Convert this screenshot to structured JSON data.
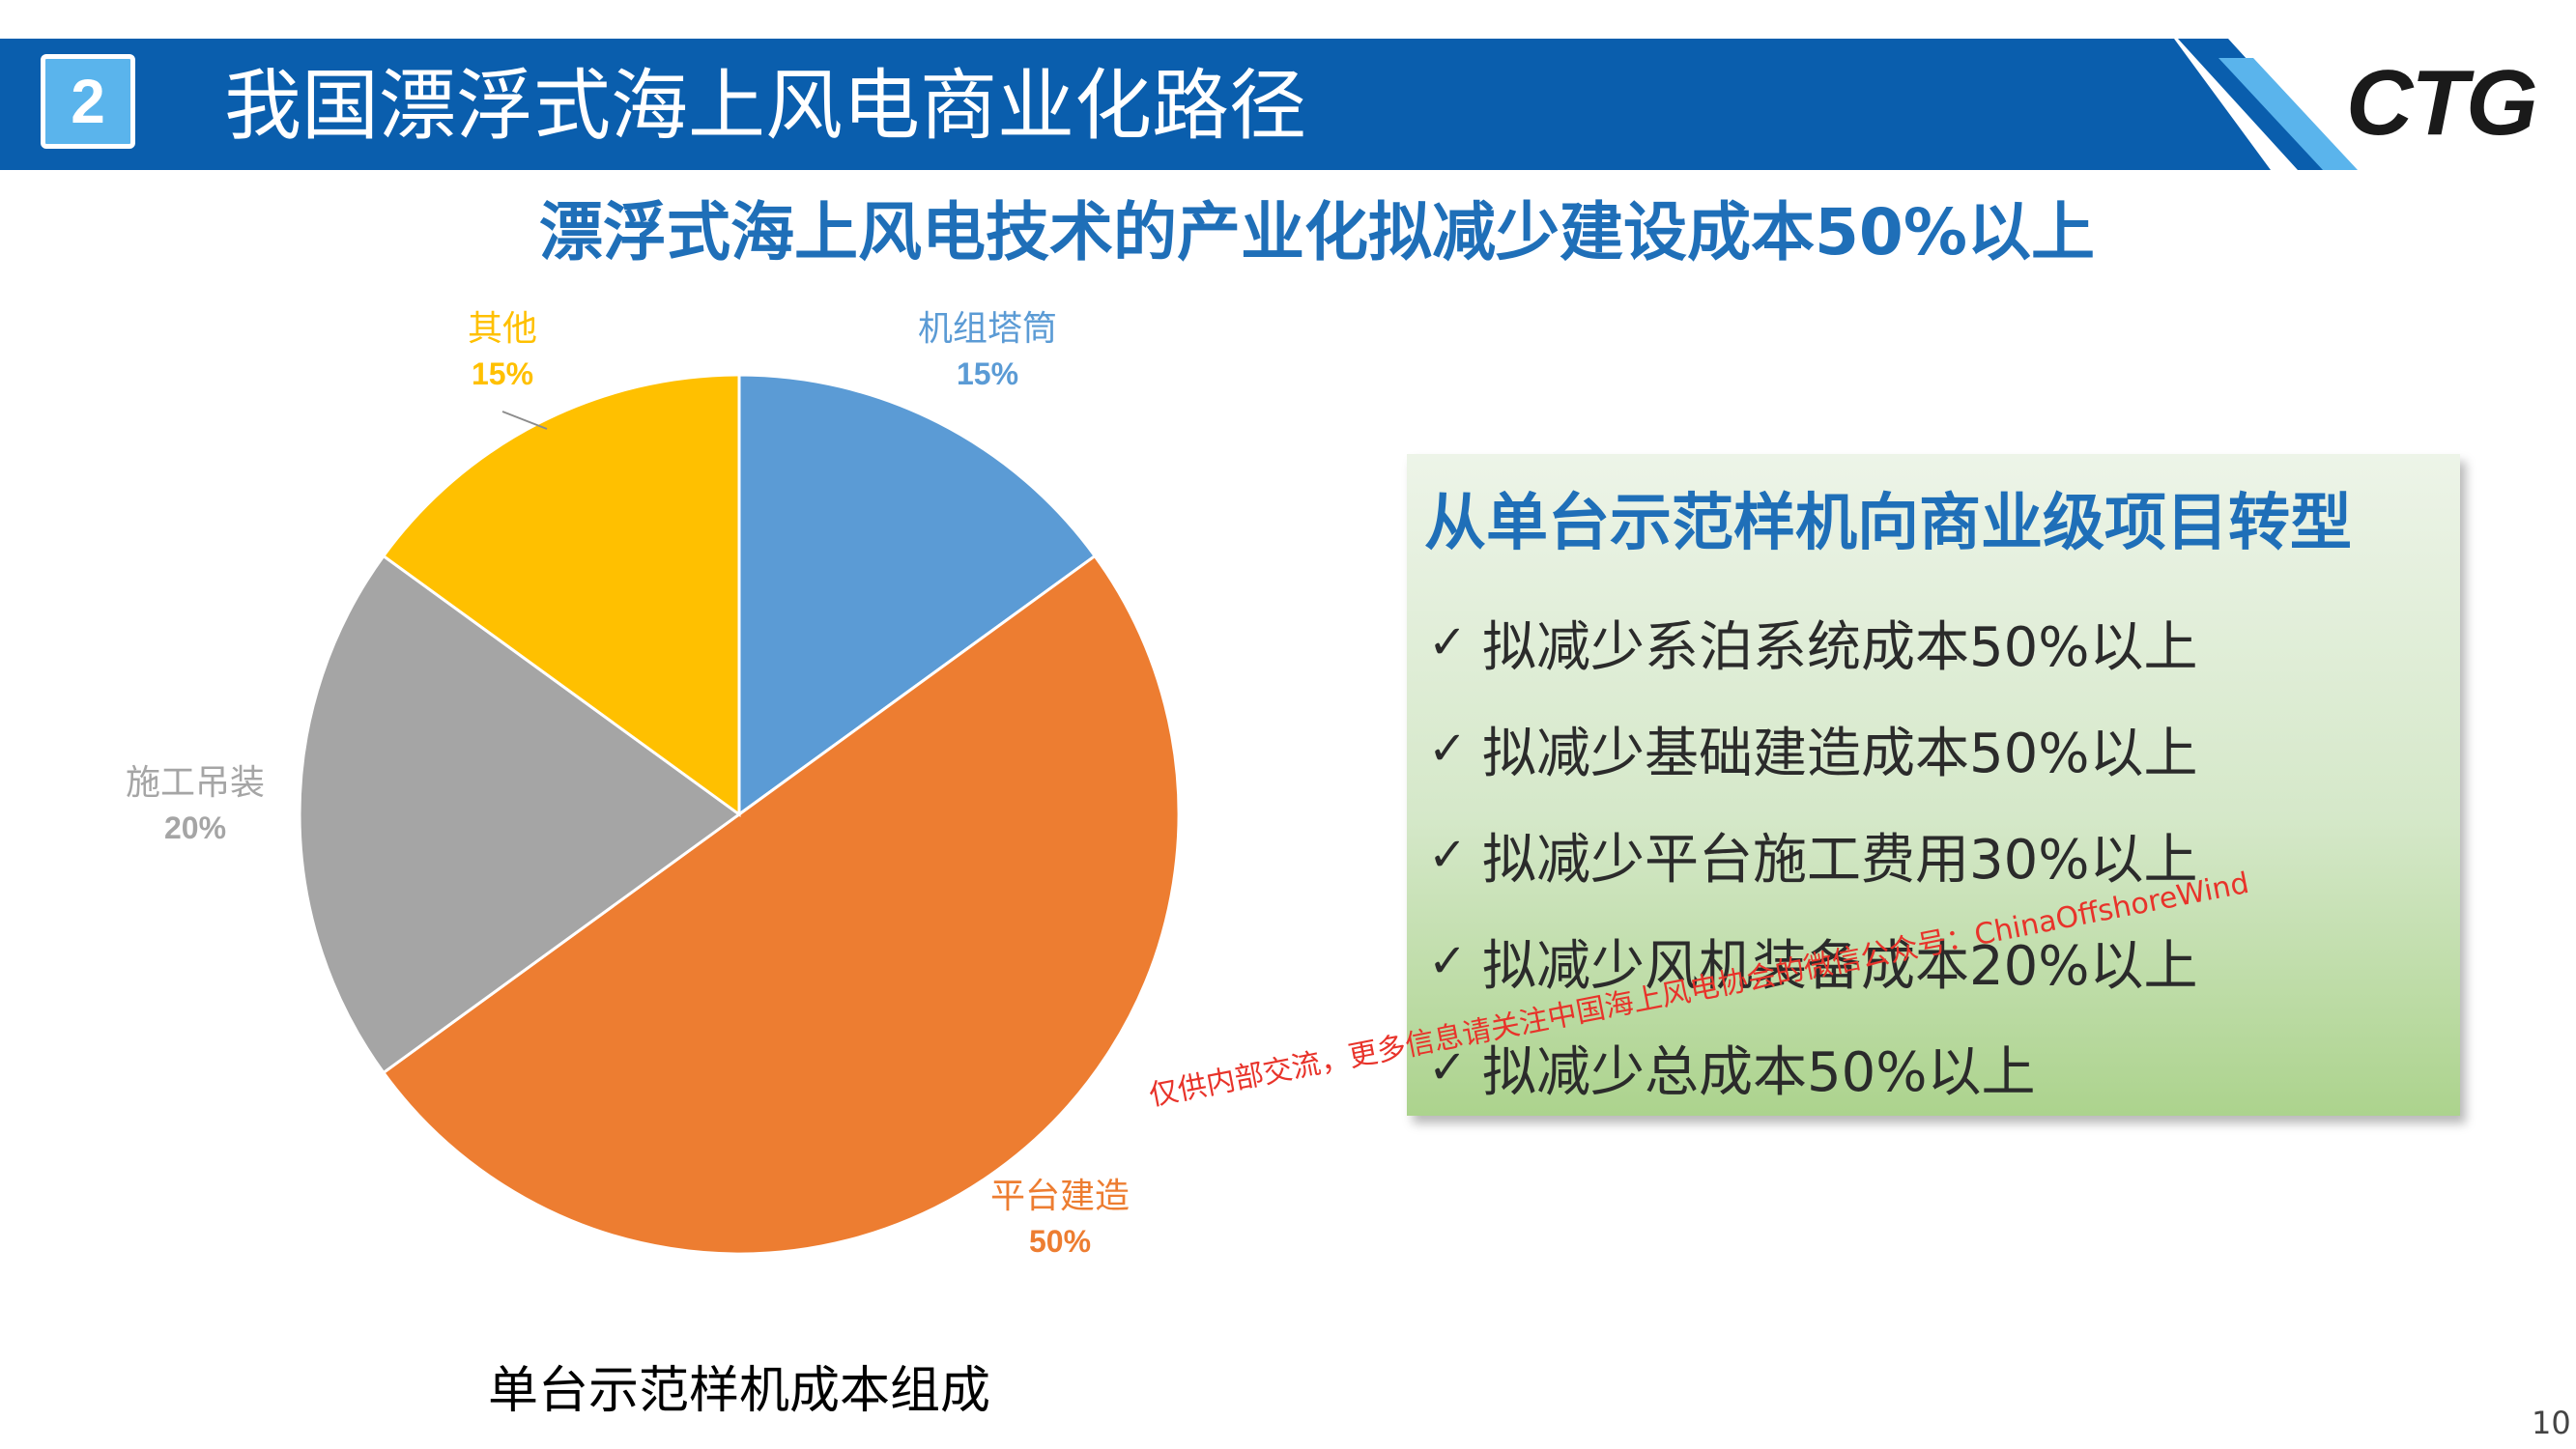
{
  "header": {
    "section_number": "2",
    "title": "我国漂浮式海上风电商业化路径",
    "logo_text": "CTG",
    "colors": {
      "bar": "#0a5ead",
      "badge": "#5ab4ec",
      "accent_stripe": "#5ab4ec"
    }
  },
  "subtitle": "漂浮式海上风电技术的产业化拟减少建设成本50%以上",
  "chart_data": {
    "type": "pie",
    "caption": "单台示范样机成本组成",
    "slices": [
      {
        "name": "机组塔筒",
        "value": 15,
        "label": "15%",
        "color": "#5b9bd5"
      },
      {
        "name": "平台建造",
        "value": 50,
        "label": "50%",
        "color": "#ed7d31"
      },
      {
        "name": "施工吊装",
        "value": 20,
        "label": "20%",
        "color": "#a5a5a5"
      },
      {
        "name": "其他",
        "value": 15,
        "label": "15%",
        "color": "#ffc000"
      }
    ],
    "start_angle_deg": 0,
    "direction": "clockwise"
  },
  "info_box": {
    "title": "从单台示范样机向商业级项目转型",
    "check_symbol": "✓",
    "items": [
      "拟减少系泊系统成本50%以上",
      "拟减少基础建造成本50%以上",
      "拟减少平台施工费用30%以上",
      "拟减少风机装备成本20%以上",
      "拟减少总成本50%以上"
    ]
  },
  "watermark": "仅供内部交流，更多信息请关注中国海上风电协会的微信公众号：ChinaOffshoreWind",
  "page_number": "10"
}
